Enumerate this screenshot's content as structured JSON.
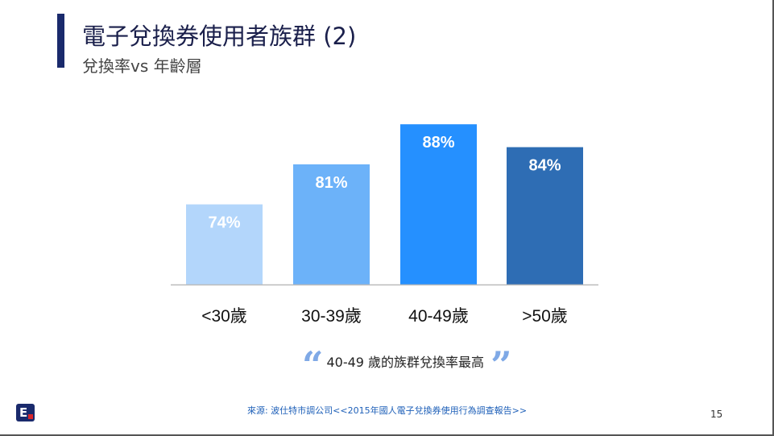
{
  "slide": {
    "title": "電子兌換券使用者族群 (2)",
    "subtitle": "兌換率vs 年齡層",
    "quote": "40-49 歲的族群兌換率最高",
    "quote_open": "“",
    "quote_close": "”",
    "source": "來源: 波仕特市調公司<<2015年國人電子兌換券使用行為調查報告>>",
    "page_number": "15",
    "logo_letter": "E"
  },
  "colors": {
    "title_bar": "#1a2a6c",
    "bars": [
      "#b3d6fb",
      "#6cb2f9",
      "#2590ff",
      "#2e6db4"
    ],
    "axis": "#bbbbbb"
  },
  "chart_data": {
    "type": "bar",
    "categories": [
      "<30歲",
      "30-39歲",
      "40-49歲",
      ">50歲"
    ],
    "values": [
      74,
      81,
      88,
      84
    ],
    "value_labels": [
      "74%",
      "81%",
      "88%",
      "84%"
    ],
    "title": "",
    "xlabel": "",
    "ylabel": "",
    "ylim": [
      60,
      90
    ],
    "grid": false,
    "legend": "none"
  }
}
